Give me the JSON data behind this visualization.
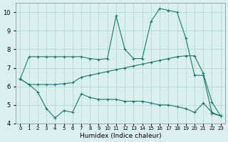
{
  "xlabel": "Humidex (Indice chaleur)",
  "x_values": [
    0,
    1,
    2,
    3,
    4,
    5,
    6,
    7,
    8,
    9,
    10,
    11,
    12,
    13,
    14,
    15,
    16,
    17,
    18,
    19,
    20,
    21,
    22,
    23
  ],
  "line_top": [
    6.4,
    7.6,
    7.6,
    7.6,
    7.6,
    7.6,
    7.6,
    7.6,
    7.5,
    7.45,
    7.5,
    9.8,
    8.0,
    7.5,
    7.5,
    9.5,
    10.2,
    10.1,
    10.0,
    8.6,
    6.6,
    6.6,
    4.55,
    4.4
  ],
  "line_mid": [
    6.4,
    6.1,
    6.1,
    6.1,
    6.1,
    6.15,
    6.2,
    6.5,
    6.6,
    6.7,
    6.8,
    6.9,
    7.0,
    7.1,
    7.2,
    7.3,
    7.4,
    7.5,
    7.6,
    7.65,
    7.65,
    6.7,
    5.15,
    4.4
  ],
  "line_bot": [
    6.4,
    6.1,
    5.7,
    4.8,
    4.3,
    4.7,
    4.6,
    5.6,
    5.4,
    5.3,
    5.3,
    5.3,
    5.2,
    5.2,
    5.2,
    5.1,
    5.0,
    5.0,
    4.9,
    4.8,
    4.6,
    5.1,
    4.6,
    4.4
  ],
  "line_color": "#1a7a6e",
  "bg_color": "#daf0ef",
  "grid_color": "#b0d4d4",
  "ylim": [
    4,
    10.5
  ],
  "yticks": [
    4,
    5,
    6,
    7,
    8,
    9,
    10
  ],
  "xlim": [
    -0.5,
    23.5
  ]
}
